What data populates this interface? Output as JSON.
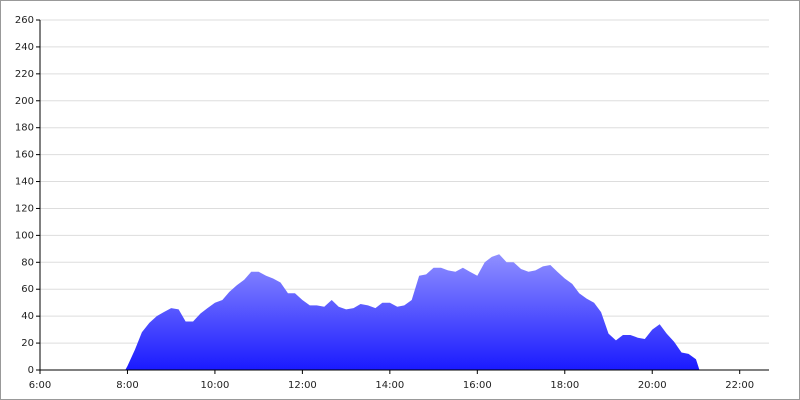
{
  "chart_data": {
    "type": "area",
    "x": [
      7.95,
      8,
      8.17,
      8.33,
      8.5,
      8.67,
      8.83,
      9,
      9.17,
      9.33,
      9.5,
      9.67,
      9.83,
      10,
      10.17,
      10.33,
      10.5,
      10.67,
      10.83,
      11,
      11.17,
      11.33,
      11.5,
      11.67,
      11.83,
      12,
      12.17,
      12.33,
      12.5,
      12.67,
      12.83,
      13,
      13.17,
      13.33,
      13.5,
      13.67,
      13.83,
      14,
      14.17,
      14.33,
      14.5,
      14.67,
      14.83,
      15,
      15.17,
      15.33,
      15.5,
      15.67,
      15.83,
      16,
      16.17,
      16.33,
      16.5,
      16.67,
      16.83,
      17,
      17.17,
      17.33,
      17.5,
      17.67,
      17.83,
      18,
      18.17,
      18.33,
      18.5,
      18.67,
      18.83,
      19,
      19.17,
      19.33,
      19.5,
      19.67,
      19.83,
      20,
      20.17,
      20.33,
      20.5,
      20.67,
      20.83,
      21,
      21.08
    ],
    "values": [
      0,
      3,
      15,
      28,
      35,
      40,
      43,
      46,
      45,
      36,
      36,
      42,
      46,
      50,
      52,
      58,
      63,
      67,
      73,
      73,
      70,
      68,
      65,
      57,
      57,
      52,
      48,
      48,
      47,
      52,
      47,
      45,
      46,
      49,
      48,
      46,
      50,
      50,
      47,
      48,
      52,
      70,
      71,
      76,
      76,
      74,
      73,
      76,
      73,
      70,
      80,
      84,
      86,
      80,
      80,
      75,
      73,
      74,
      77,
      78,
      73,
      68,
      64,
      57,
      53,
      50,
      43,
      27,
      22,
      26,
      26,
      24,
      23,
      30,
      34,
      27,
      21,
      13,
      12,
      8,
      0
    ],
    "color_top": "#9090ff",
    "color_bottom": "#1a1aff",
    "xlim": [
      6,
      22.67
    ],
    "xticks": [
      {
        "value": 6,
        "label": "6:00"
      },
      {
        "value": 8,
        "label": "8:00"
      },
      {
        "value": 10,
        "label": "10:00"
      },
      {
        "value": 12,
        "label": "12:00"
      },
      {
        "value": 14,
        "label": "14:00"
      },
      {
        "value": 16,
        "label": "16:00"
      },
      {
        "value": 18,
        "label": "18:00"
      },
      {
        "value": 20,
        "label": "20:00"
      },
      {
        "value": 22,
        "label": "22:00"
      }
    ],
    "ylim": [
      0,
      260
    ],
    "yticks": [
      0,
      20,
      40,
      60,
      80,
      100,
      120,
      140,
      160,
      180,
      200,
      220,
      240,
      260
    ],
    "grid": true
  }
}
